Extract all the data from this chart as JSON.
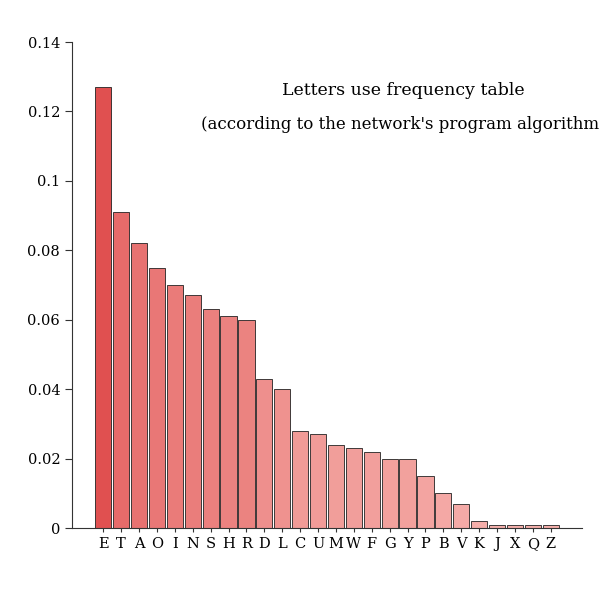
{
  "categories": [
    "E",
    "T",
    "A",
    "O",
    "I",
    "N",
    "S",
    "H",
    "R",
    "D",
    "L",
    "C",
    "U",
    "M",
    "W",
    "F",
    "G",
    "Y",
    "P",
    "B",
    "V",
    "K",
    "J",
    "X",
    "Q",
    "Z"
  ],
  "values": [
    0.127,
    0.091,
    0.082,
    0.075,
    0.07,
    0.067,
    0.063,
    0.061,
    0.06,
    0.043,
    0.04,
    0.028,
    0.027,
    0.024,
    0.023,
    0.022,
    0.02,
    0.02,
    0.015,
    0.01,
    0.007,
    0.002,
    0.001,
    0.001,
    0.001,
    0.001
  ],
  "title_line1": "Letters use frequency table",
  "title_line2": "(according to the network's program algorithm)",
  "ylim": [
    0,
    0.14
  ],
  "yticks": [
    0,
    0.02,
    0.04,
    0.06,
    0.08,
    0.1,
    0.12,
    0.14
  ],
  "bar_color_dark": "#E05050",
  "bar_color_light": "#F5AFAB",
  "bar_edge_color": "#222222",
  "background_color": "#ffffff",
  "title_fontsize": 12.5,
  "tick_fontsize": 10.5
}
